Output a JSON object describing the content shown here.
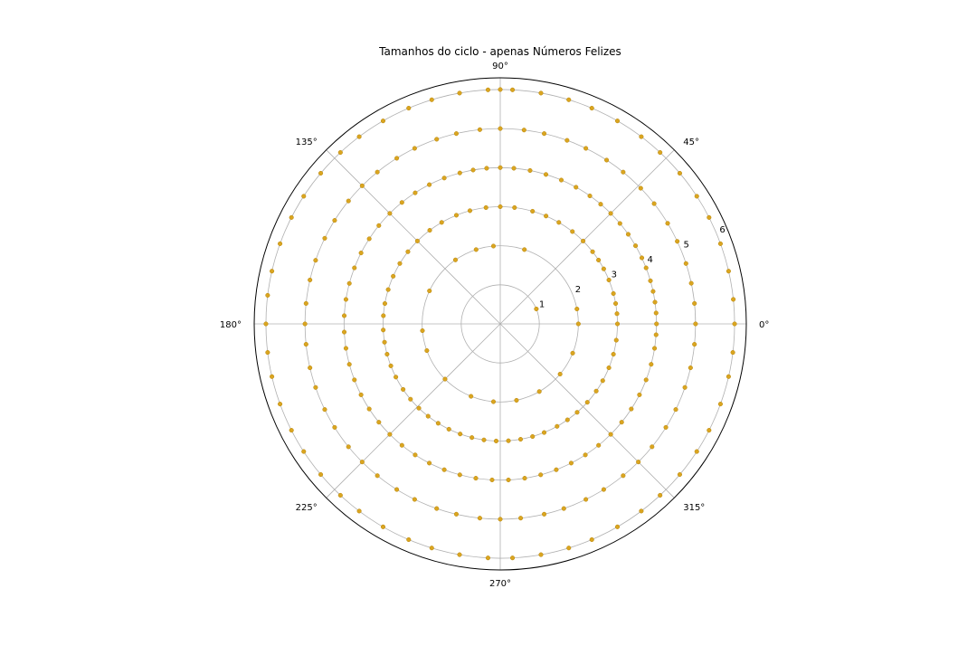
{
  "chart_data": {
    "type": "scatter",
    "projection": "polar",
    "title": "Tamanhos do ciclo - apenas Números Felizes",
    "theta_unit": "degrees",
    "angle_tick_labels": [
      "0°",
      "45°",
      "90°",
      "135°",
      "180°",
      "225°",
      "270°",
      "315°"
    ],
    "angle_ticks": [
      0,
      45,
      90,
      135,
      180,
      225,
      270,
      315
    ],
    "radial_tick_labels": [
      "1",
      "2",
      "3",
      "4",
      "5",
      "6"
    ],
    "radial_ticks": [
      1,
      2,
      3,
      4,
      5,
      6
    ],
    "radial_label_angle": 22.5,
    "rlim": [
      0,
      6.3
    ],
    "grid": true,
    "marker_color": "#DAA520",
    "marker_edge_color": "#B8860B",
    "spine_color": "#000000",
    "grid_color": "#b0b0b0",
    "series": [
      {
        "r": 1,
        "theta": [
          22.5
        ]
      },
      {
        "r": 2,
        "theta": [
          0,
          11,
          72,
          95,
          108,
          125,
          155,
          185,
          200,
          225,
          248,
          265,
          282,
          300,
          320,
          338
        ]
      },
      {
        "r": 3,
        "theta": [
          0,
          5,
          10,
          15,
          22,
          28,
          33,
          38,
          45,
          52,
          60,
          67,
          74,
          83,
          90,
          97,
          105,
          112,
          120,
          127,
          135,
          142,
          149,
          156,
          163,
          170,
          176,
          183,
          189,
          195,
          201,
          207,
          214,
          220,
          226,
          232,
          238,
          244,
          250,
          256,
          262,
          268,
          274,
          280,
          286,
          292,
          299,
          305,
          311,
          318,
          325,
          331,
          338,
          345,
          352
        ]
      },
      {
        "r": 4,
        "theta": [
          0,
          4,
          8,
          12,
          16,
          21,
          25,
          30,
          35,
          40,
          45,
          50,
          55,
          61,
          67,
          73,
          79,
          85,
          90,
          95,
          100,
          105,
          111,
          117,
          123,
          129,
          135,
          141,
          147,
          153,
          159,
          165,
          171,
          177,
          183,
          189,
          195,
          201,
          207,
          213,
          219,
          225,
          231,
          237,
          243,
          249,
          255,
          261,
          267,
          273,
          279,
          285,
          291,
          297,
          303,
          309,
          315,
          321,
          327,
          333,
          339,
          345,
          351,
          356
        ]
      },
      {
        "r": 5,
        "theta": [
          0,
          6,
          12,
          18,
          25,
          31,
          38,
          44,
          51,
          57,
          64,
          70,
          77,
          83,
          90,
          96,
          103,
          109,
          116,
          122,
          129,
          135,
          141,
          148,
          154,
          161,
          167,
          174,
          180,
          186,
          193,
          199,
          206,
          212,
          219,
          225,
          231,
          238,
          244,
          251,
          257,
          264,
          270,
          276,
          283,
          289,
          296,
          302,
          309,
          315,
          321,
          328,
          334,
          341,
          347,
          354
        ]
      },
      {
        "r": 6,
        "theta": [
          0,
          6,
          13,
          20,
          27,
          33,
          40,
          47,
          53,
          60,
          67,
          73,
          80,
          87,
          90,
          93,
          100,
          107,
          113,
          120,
          127,
          133,
          140,
          147,
          153,
          160,
          167,
          173,
          180,
          187,
          193,
          200,
          207,
          213,
          220,
          227,
          233,
          240,
          247,
          253,
          260,
          267,
          273,
          280,
          287,
          293,
          300,
          307,
          313,
          320,
          327,
          333,
          340,
          347,
          353
        ]
      }
    ]
  }
}
